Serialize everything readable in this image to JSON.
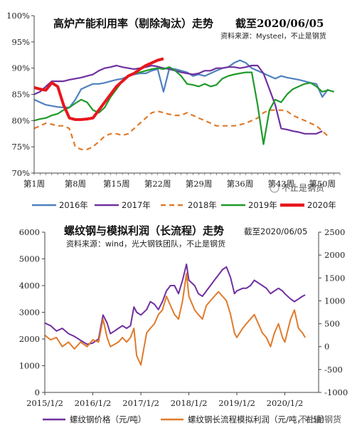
{
  "watermark": "不止是钢货",
  "chart_data": [
    {
      "type": "line",
      "title": "高炉产能利用率（剔除淘汰）走势",
      "subtitle": "截至2020/06/05",
      "source": "资料来源：Mysteel，不止是钢货",
      "y_ticks": [
        "70%",
        "75%",
        "80%",
        "85%",
        "90%",
        "95%",
        "100%"
      ],
      "ylim": [
        70,
        100
      ],
      "xlim": [
        1,
        53
      ],
      "x_ticks": [
        {
          "label": "第1周",
          "week": 1
        },
        {
          "label": "第8周",
          "week": 8
        },
        {
          "label": "第15周",
          "week": 15
        },
        {
          "label": "第22周",
          "week": 22
        },
        {
          "label": "第29周",
          "week": 29
        },
        {
          "label": "第36周",
          "week": 36
        },
        {
          "label": "第43周",
          "week": 43
        },
        {
          "label": "第50周",
          "week": 50
        }
      ],
      "legend_position": "bottom",
      "series": [
        {
          "name": "2016年",
          "color": "#4e81bd",
          "dash": false,
          "x": [
            1,
            2,
            3,
            4,
            5,
            6,
            7,
            8,
            9,
            10,
            11,
            12,
            13,
            14,
            15,
            16,
            17,
            18,
            19,
            20,
            21,
            22,
            23,
            24,
            25,
            26,
            27,
            28,
            29,
            30,
            31,
            32,
            33,
            34,
            35,
            36,
            37,
            38,
            39,
            40,
            41,
            42,
            43,
            44,
            45,
            46,
            47,
            48,
            49,
            50,
            51
          ],
          "values": [
            84,
            83.5,
            83,
            82.8,
            82.6,
            82.5,
            82.5,
            84,
            86,
            86.5,
            87,
            87,
            87.2,
            87.5,
            87.8,
            88,
            88.5,
            88.8,
            89,
            89,
            89.5,
            89.8,
            85.5,
            90,
            89.8,
            89.5,
            89.2,
            88.5,
            88.8,
            88.5,
            89,
            89.5,
            90,
            90.2,
            91,
            91.5,
            91,
            90,
            89.5,
            89,
            88.5,
            88,
            88.5,
            88.2,
            88,
            87.8,
            87.5,
            87.2,
            87,
            84.5,
            86
          ]
        },
        {
          "name": "2017年",
          "color": "#7030a0",
          "dash": false,
          "x": [
            1,
            2,
            3,
            4,
            5,
            6,
            7,
            8,
            9,
            10,
            11,
            12,
            13,
            14,
            15,
            16,
            17,
            18,
            19,
            20,
            21,
            22,
            23,
            24,
            25,
            26,
            27,
            28,
            29,
            30,
            31,
            32,
            33,
            34,
            35,
            36,
            37,
            38,
            39,
            40,
            41,
            42,
            43,
            44,
            45,
            46,
            47,
            48,
            49,
            50
          ],
          "values": [
            85,
            85.5,
            86.5,
            87.5,
            87.5,
            87.5,
            87.8,
            88,
            88.2,
            88.5,
            88.8,
            89.5,
            90,
            90.2,
            90.5,
            90.2,
            90,
            89.8,
            90,
            90.2,
            90.5,
            90.3,
            90,
            89.8,
            89.5,
            89.2,
            89,
            88.8,
            89,
            89.5,
            89.5,
            90,
            90,
            90.2,
            90.2,
            90,
            90.2,
            90.5,
            90.5,
            89,
            86,
            83,
            78.5,
            78.3,
            78,
            77.8,
            77.5,
            77.5,
            77.5,
            78
          ]
        },
        {
          "name": "2018年",
          "color": "#e07b2c",
          "dash": true,
          "x": [
            1,
            2,
            3,
            4,
            5,
            6,
            7,
            8,
            9,
            10,
            11,
            12,
            13,
            14,
            15,
            16,
            17,
            18,
            19,
            20,
            21,
            22,
            23,
            24,
            25,
            26,
            27,
            28,
            29,
            30,
            31,
            32,
            33,
            34,
            35,
            36,
            37,
            38,
            39,
            40,
            41,
            42,
            43,
            44,
            45,
            46,
            47,
            48,
            49,
            50,
            51
          ],
          "values": [
            78.5,
            79,
            79.5,
            79.3,
            79,
            79,
            78.5,
            75,
            74.5,
            74.5,
            75,
            76,
            77,
            77.5,
            77.5,
            77.2,
            77.5,
            78.5,
            79.5,
            80.5,
            81.5,
            81.8,
            81.5,
            81.2,
            81,
            81,
            81.5,
            81,
            80.5,
            80,
            79.5,
            79,
            79,
            79,
            79,
            79.2,
            79.5,
            80,
            80.5,
            81.5,
            82,
            82,
            82,
            81.8,
            81,
            80.5,
            80,
            79.5,
            79,
            78,
            77
          ]
        },
        {
          "name": "2019年",
          "color": "#1e9a2a",
          "dash": false,
          "x": [
            1,
            2,
            3,
            4,
            5,
            6,
            7,
            8,
            9,
            10,
            11,
            12,
            13,
            14,
            15,
            16,
            17,
            18,
            19,
            20,
            21,
            22,
            23,
            24,
            25,
            26,
            27,
            28,
            29,
            30,
            31,
            32,
            33,
            34,
            35,
            36,
            37,
            38,
            39,
            40,
            41,
            42,
            43,
            44,
            45,
            46,
            47,
            48,
            49,
            50,
            51,
            52
          ],
          "values": [
            80,
            80.3,
            80.5,
            81,
            81.3,
            82,
            82.5,
            83.3,
            84,
            83.5,
            82,
            81.5,
            82.5,
            84.5,
            86,
            87.5,
            88.5,
            89,
            89.2,
            89.5,
            89.8,
            90,
            89.8,
            90.2,
            89.5,
            88.5,
            87,
            86.8,
            86.5,
            87,
            86.5,
            86.8,
            88,
            88.5,
            88.8,
            89,
            89.2,
            89.2,
            83,
            75.5,
            82,
            84,
            83.5,
            85,
            86,
            86.5,
            87,
            87.2,
            86.5,
            85.5,
            85.8,
            85.5
          ]
        },
        {
          "name": "2020年",
          "color": "#e8161c",
          "dash": false,
          "x": [
            1,
            2,
            3,
            4,
            5,
            6,
            7,
            8,
            9,
            10,
            11,
            12,
            13,
            14,
            15,
            16,
            17,
            18,
            19,
            20,
            21,
            22,
            23
          ],
          "values": [
            86.3,
            86,
            85.8,
            87.2,
            86.5,
            83,
            80.5,
            80.2,
            80.2,
            80.3,
            80.5,
            82,
            83.5,
            85,
            86.5,
            87.5,
            88.5,
            89,
            89.8,
            90.5,
            91,
            91.5,
            91.8
          ]
        }
      ]
    },
    {
      "type": "line",
      "title": "螺纹钢与模拟利润（长流程）走势",
      "subtitle": "截至2020/06/05",
      "source": "资料来源：wind，光大钢铁团队，不止是钢货",
      "y_left_ticks": [
        "0",
        "1000",
        "2000",
        "3000",
        "4000",
        "5000",
        "6000"
      ],
      "ylim_left": [
        0,
        6000
      ],
      "y_right_ticks": [
        "-1000",
        "-500",
        "0",
        "500",
        "1000",
        "1500",
        "2000",
        "2500"
      ],
      "ylim_right": [
        -1000,
        2500
      ],
      "xlim": [
        "2015-01-02",
        "2020-09-15"
      ],
      "x_ticks": [
        {
          "label": "2015/1/2",
          "date": "2015-01-02"
        },
        {
          "label": "2016/1/2",
          "date": "2016-01-02"
        },
        {
          "label": "2017/1/2",
          "date": "2017-01-02"
        },
        {
          "label": "2018/1/2",
          "date": "2018-01-02"
        },
        {
          "label": "2019/1/2",
          "date": "2019-01-02"
        },
        {
          "label": "2020/1/2",
          "date": "2020-01-02"
        }
      ],
      "legend_position": "bottom",
      "series": [
        {
          "name": "螺纹钢价格（元/吨）",
          "axis": "left",
          "color": "#7030a0",
          "x": [
            "2015-01-02",
            "2015-02-15",
            "2015-04-01",
            "2015-05-15",
            "2015-07-01",
            "2015-08-15",
            "2015-10-01",
            "2015-11-20",
            "2016-01-02",
            "2016-02-15",
            "2016-03-20",
            "2016-04-20",
            "2016-05-15",
            "2016-06-15",
            "2016-07-15",
            "2016-08-15",
            "2016-09-15",
            "2016-10-15",
            "2016-11-10",
            "2016-12-01",
            "2017-01-02",
            "2017-02-15",
            "2017-03-15",
            "2017-04-15",
            "2017-05-15",
            "2017-06-15",
            "2017-07-15",
            "2017-08-15",
            "2017-09-15",
            "2017-10-15",
            "2017-11-15",
            "2017-12-15",
            "2018-01-02",
            "2018-02-15",
            "2018-03-15",
            "2018-04-15",
            "2018-05-15",
            "2018-06-15",
            "2018-07-15",
            "2018-08-15",
            "2018-09-15",
            "2018-10-15",
            "2018-11-15",
            "2018-12-15",
            "2019-01-02",
            "2019-02-15",
            "2019-03-15",
            "2019-04-15",
            "2019-05-15",
            "2019-06-15",
            "2019-07-15",
            "2019-08-15",
            "2019-09-15",
            "2019-10-15",
            "2019-11-15",
            "2019-12-15",
            "2020-01-02",
            "2020-02-15",
            "2020-03-15",
            "2020-04-15",
            "2020-05-15",
            "2020-06-05"
          ],
          "values": [
            2600,
            2500,
            2300,
            2400,
            2200,
            2100,
            1950,
            1800,
            1850,
            2000,
            2900,
            2600,
            2200,
            2300,
            2400,
            2500,
            2400,
            2500,
            3200,
            3000,
            2900,
            3100,
            3400,
            3300,
            3100,
            3400,
            3800,
            4000,
            4000,
            3700,
            4200,
            4800,
            4200,
            4000,
            3700,
            3600,
            3800,
            4000,
            4200,
            4400,
            4600,
            4700,
            4300,
            3700,
            3800,
            3900,
            3900,
            4000,
            4200,
            4100,
            4000,
            3900,
            3700,
            3800,
            3900,
            3800,
            3700,
            3500,
            3400,
            3500,
            3600,
            3650
          ]
        },
        {
          "name": "螺纹钢长流程模拟利润（元/吨，右轴）",
          "axis": "right",
          "color": "#e07b2c",
          "x": [
            "2015-01-02",
            "2015-02-15",
            "2015-04-01",
            "2015-05-15",
            "2015-07-01",
            "2015-08-15",
            "2015-10-01",
            "2015-11-20",
            "2016-01-02",
            "2016-02-15",
            "2016-03-20",
            "2016-04-20",
            "2016-05-15",
            "2016-06-15",
            "2016-07-15",
            "2016-08-15",
            "2016-09-15",
            "2016-10-15",
            "2016-11-10",
            "2016-12-01",
            "2017-01-02",
            "2017-02-15",
            "2017-03-15",
            "2017-04-15",
            "2017-05-15",
            "2017-06-15",
            "2017-07-15",
            "2017-08-15",
            "2017-09-15",
            "2017-10-15",
            "2017-11-15",
            "2017-12-15",
            "2018-01-02",
            "2018-02-15",
            "2018-03-15",
            "2018-04-15",
            "2018-05-15",
            "2018-06-15",
            "2018-07-15",
            "2018-08-15",
            "2018-09-15",
            "2018-10-15",
            "2018-11-15",
            "2018-12-15",
            "2019-01-02",
            "2019-02-15",
            "2019-03-15",
            "2019-04-15",
            "2019-05-15",
            "2019-06-15",
            "2019-07-15",
            "2019-08-15",
            "2019-09-15",
            "2019-10-15",
            "2019-11-15",
            "2019-12-15",
            "2020-01-02",
            "2020-02-15",
            "2020-03-15",
            "2020-04-15",
            "2020-05-15",
            "2020-06-05"
          ],
          "values": [
            250,
            150,
            200,
            0,
            100,
            -50,
            100,
            0,
            150,
            100,
            600,
            200,
            0,
            50,
            100,
            200,
            100,
            200,
            400,
            -200,
            -400,
            300,
            400,
            500,
            700,
            800,
            1100,
            900,
            700,
            600,
            1000,
            1600,
            1100,
            800,
            700,
            600,
            900,
            1000,
            1100,
            1200,
            1100,
            1000,
            700,
            300,
            200,
            400,
            500,
            600,
            700,
            500,
            300,
            200,
            0,
            300,
            500,
            200,
            100,
            600,
            800,
            400,
            300,
            200
          ]
        }
      ]
    }
  ]
}
